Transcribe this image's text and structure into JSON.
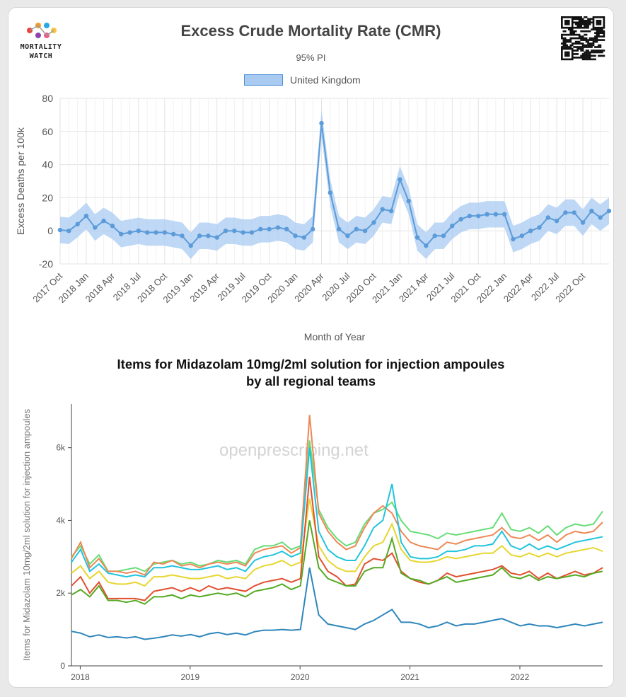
{
  "brand": {
    "logo_line1": "MORTALITY",
    "logo_line2": "WATCH"
  },
  "chart_data": [
    {
      "type": "line",
      "title": "Excess Crude Mortality Rate (CMR)",
      "subtitle": "95% PI",
      "xlabel": "Month of Year",
      "ylabel": "Excess Deaths per 100k",
      "ylim": [
        -20,
        80
      ],
      "yticks": [
        80,
        60,
        40,
        20,
        0,
        -20
      ],
      "grid": true,
      "legend_position": "top",
      "x_ticks": [
        "2017 Oct",
        "2018 Jan",
        "2018 Apr",
        "2018 Jul",
        "2018 Oct",
        "2019 Jan",
        "2019 Apr",
        "2019 Jul",
        "2019 Oct",
        "2020 Jan",
        "2020 Apr",
        "2020 Jul",
        "2020 Oct",
        "2021 Jan",
        "2021 Apr",
        "2021 Jul",
        "2021 Oct",
        "2022 Jan",
        "2022 Apr",
        "2022 Jul",
        "2022 Oct"
      ],
      "x_start": "2017-10",
      "series": [
        {
          "name": "United Kingdom",
          "color": "#5b9bd9",
          "band_color": "#a9cbf2",
          "values": [
            0.5,
            0,
            4,
            9,
            2,
            6,
            3,
            -2,
            -1,
            0,
            -1,
            -1,
            -1,
            -2,
            -3,
            -9,
            -3,
            -3,
            -4,
            0,
            0,
            -1,
            -1,
            1,
            1,
            2,
            1,
            -3,
            -4,
            1,
            65,
            23,
            1,
            -3,
            1,
            0,
            5,
            13,
            12,
            31,
            18,
            -4,
            -9,
            -3,
            -3,
            3,
            7,
            9,
            9,
            10,
            10,
            10,
            -5,
            -3,
            0,
            2,
            8,
            6,
            11,
            11,
            5,
            12,
            8,
            12
          ],
          "band_half_width": 8
        }
      ]
    },
    {
      "type": "line",
      "title": "Items for Midazolam 10mg/2ml solution for injection ampoules by all regional teams",
      "ylabel": "Items for Midazolam 10mg/2ml solution for injection ampoules",
      "watermark": "openprescribing.net",
      "ylim": [
        0,
        7200
      ],
      "yticks": [
        {
          "v": 0,
          "label": "0"
        },
        {
          "v": 2000,
          "label": "2k"
        },
        {
          "v": 4000,
          "label": "4k"
        },
        {
          "v": 6000,
          "label": "6k"
        }
      ],
      "x_ticks": [
        {
          "v": 2018,
          "label": "2018"
        },
        {
          "v": 2019,
          "label": "2019"
        },
        {
          "v": 2020,
          "label": "2020"
        },
        {
          "v": 2021,
          "label": "2021"
        },
        {
          "v": 2022,
          "label": "2022"
        }
      ],
      "x_start": 2017.92,
      "x_step": 0.08333,
      "series": [
        {
          "color": "#66dd77",
          "values": [
            3000,
            3300,
            2800,
            3050,
            2600,
            2600,
            2650,
            2700,
            2600,
            2800,
            2850,
            2900,
            2800,
            2850,
            2750,
            2800,
            2900,
            2850,
            2900,
            2800,
            3200,
            3300,
            3300,
            3400,
            3200,
            3300,
            6200,
            4300,
            3800,
            3500,
            3300,
            3400,
            3900,
            4200,
            4300,
            4500,
            4000,
            3700,
            3650,
            3600,
            3500,
            3650,
            3600,
            3650,
            3700,
            3750,
            3800,
            4200,
            3750,
            3700,
            3800,
            3650,
            3850,
            3600,
            3800,
            3900,
            3850,
            3900,
            4250
          ]
        },
        {
          "color": "#ee8855",
          "values": [
            2950,
            3400,
            2700,
            2950,
            2600,
            2600,
            2550,
            2600,
            2500,
            2850,
            2800,
            2900,
            2750,
            2800,
            2700,
            2800,
            2850,
            2800,
            2850,
            2750,
            3100,
            3200,
            3250,
            3300,
            3100,
            3250,
            6900,
            4200,
            3700,
            3400,
            3200,
            3300,
            3800,
            4200,
            4400,
            4200,
            3700,
            3400,
            3300,
            3250,
            3200,
            3400,
            3350,
            3450,
            3500,
            3550,
            3600,
            3800,
            3550,
            3500,
            3600,
            3450,
            3600,
            3400,
            3600,
            3700,
            3650,
            3700,
            3950
          ]
        },
        {
          "color": "#22c4dd",
          "values": [
            2850,
            3200,
            2600,
            2800,
            2550,
            2500,
            2450,
            2500,
            2450,
            2700,
            2700,
            2750,
            2700,
            2650,
            2650,
            2700,
            2750,
            2650,
            2700,
            2600,
            2900,
            3000,
            3050,
            3150,
            3000,
            3100,
            6000,
            3700,
            3200,
            3000,
            2900,
            2900,
            3300,
            3800,
            4000,
            5000,
            3400,
            3000,
            2950,
            2950,
            3000,
            3150,
            3150,
            3200,
            3300,
            3300,
            3350,
            3700,
            3300,
            3200,
            3350,
            3200,
            3300,
            3200,
            3300,
            3400,
            3450,
            3500,
            3550
          ]
        },
        {
          "color": "#e6d630",
          "values": [
            2550,
            2750,
            2400,
            2600,
            2300,
            2250,
            2250,
            2300,
            2200,
            2450,
            2450,
            2500,
            2450,
            2400,
            2400,
            2450,
            2500,
            2400,
            2450,
            2400,
            2650,
            2750,
            2800,
            2900,
            2750,
            2850,
            4600,
            3300,
            2900,
            2700,
            2600,
            2600,
            3000,
            3300,
            3400,
            3900,
            3200,
            2900,
            2850,
            2850,
            2900,
            3000,
            2950,
            3000,
            3050,
            3100,
            3100,
            3300,
            3050,
            3000,
            3100,
            3000,
            3100,
            3000,
            3100,
            3150,
            3200,
            3250,
            3150
          ]
        },
        {
          "color": "#e05030",
          "values": [
            2200,
            2450,
            2000,
            2300,
            1850,
            1850,
            1850,
            1850,
            1800,
            2050,
            2100,
            2150,
            2050,
            2150,
            2050,
            2200,
            2100,
            2150,
            2100,
            2050,
            2200,
            2300,
            2350,
            2400,
            2300,
            2400,
            5200,
            3000,
            2600,
            2450,
            2200,
            2250,
            2800,
            2950,
            2900,
            3100,
            2600,
            2400,
            2300,
            2250,
            2350,
            2550,
            2450,
            2500,
            2550,
            2600,
            2650,
            2750,
            2550,
            2500,
            2600,
            2400,
            2550,
            2400,
            2500,
            2600,
            2500,
            2550,
            2700
          ]
        },
        {
          "color": "#55aa22",
          "values": [
            1950,
            2100,
            1900,
            2200,
            1800,
            1800,
            1750,
            1800,
            1700,
            1900,
            1900,
            1950,
            1850,
            1950,
            1900,
            1950,
            2000,
            1950,
            2000,
            1900,
            2050,
            2100,
            2150,
            2250,
            2100,
            2200,
            4000,
            2700,
            2400,
            2300,
            2200,
            2200,
            2600,
            2700,
            2700,
            3500,
            2550,
            2400,
            2350,
            2250,
            2350,
            2450,
            2300,
            2350,
            2400,
            2450,
            2500,
            2700,
            2450,
            2400,
            2500,
            2350,
            2450,
            2400,
            2450,
            2500,
            2450,
            2550,
            2600
          ]
        },
        {
          "color": "#2e86bb",
          "values": [
            950,
            900,
            800,
            850,
            780,
            800,
            770,
            800,
            730,
            760,
            800,
            850,
            820,
            860,
            800,
            880,
            920,
            860,
            900,
            850,
            940,
            980,
            980,
            1000,
            980,
            1000,
            2700,
            1400,
            1150,
            1100,
            1050,
            1000,
            1150,
            1250,
            1400,
            1550,
            1200,
            1200,
            1150,
            1050,
            1100,
            1200,
            1100,
            1150,
            1150,
            1200,
            1250,
            1300,
            1200,
            1100,
            1150,
            1100,
            1100,
            1050,
            1100,
            1150,
            1100,
            1150,
            1200
          ]
        }
      ]
    }
  ]
}
